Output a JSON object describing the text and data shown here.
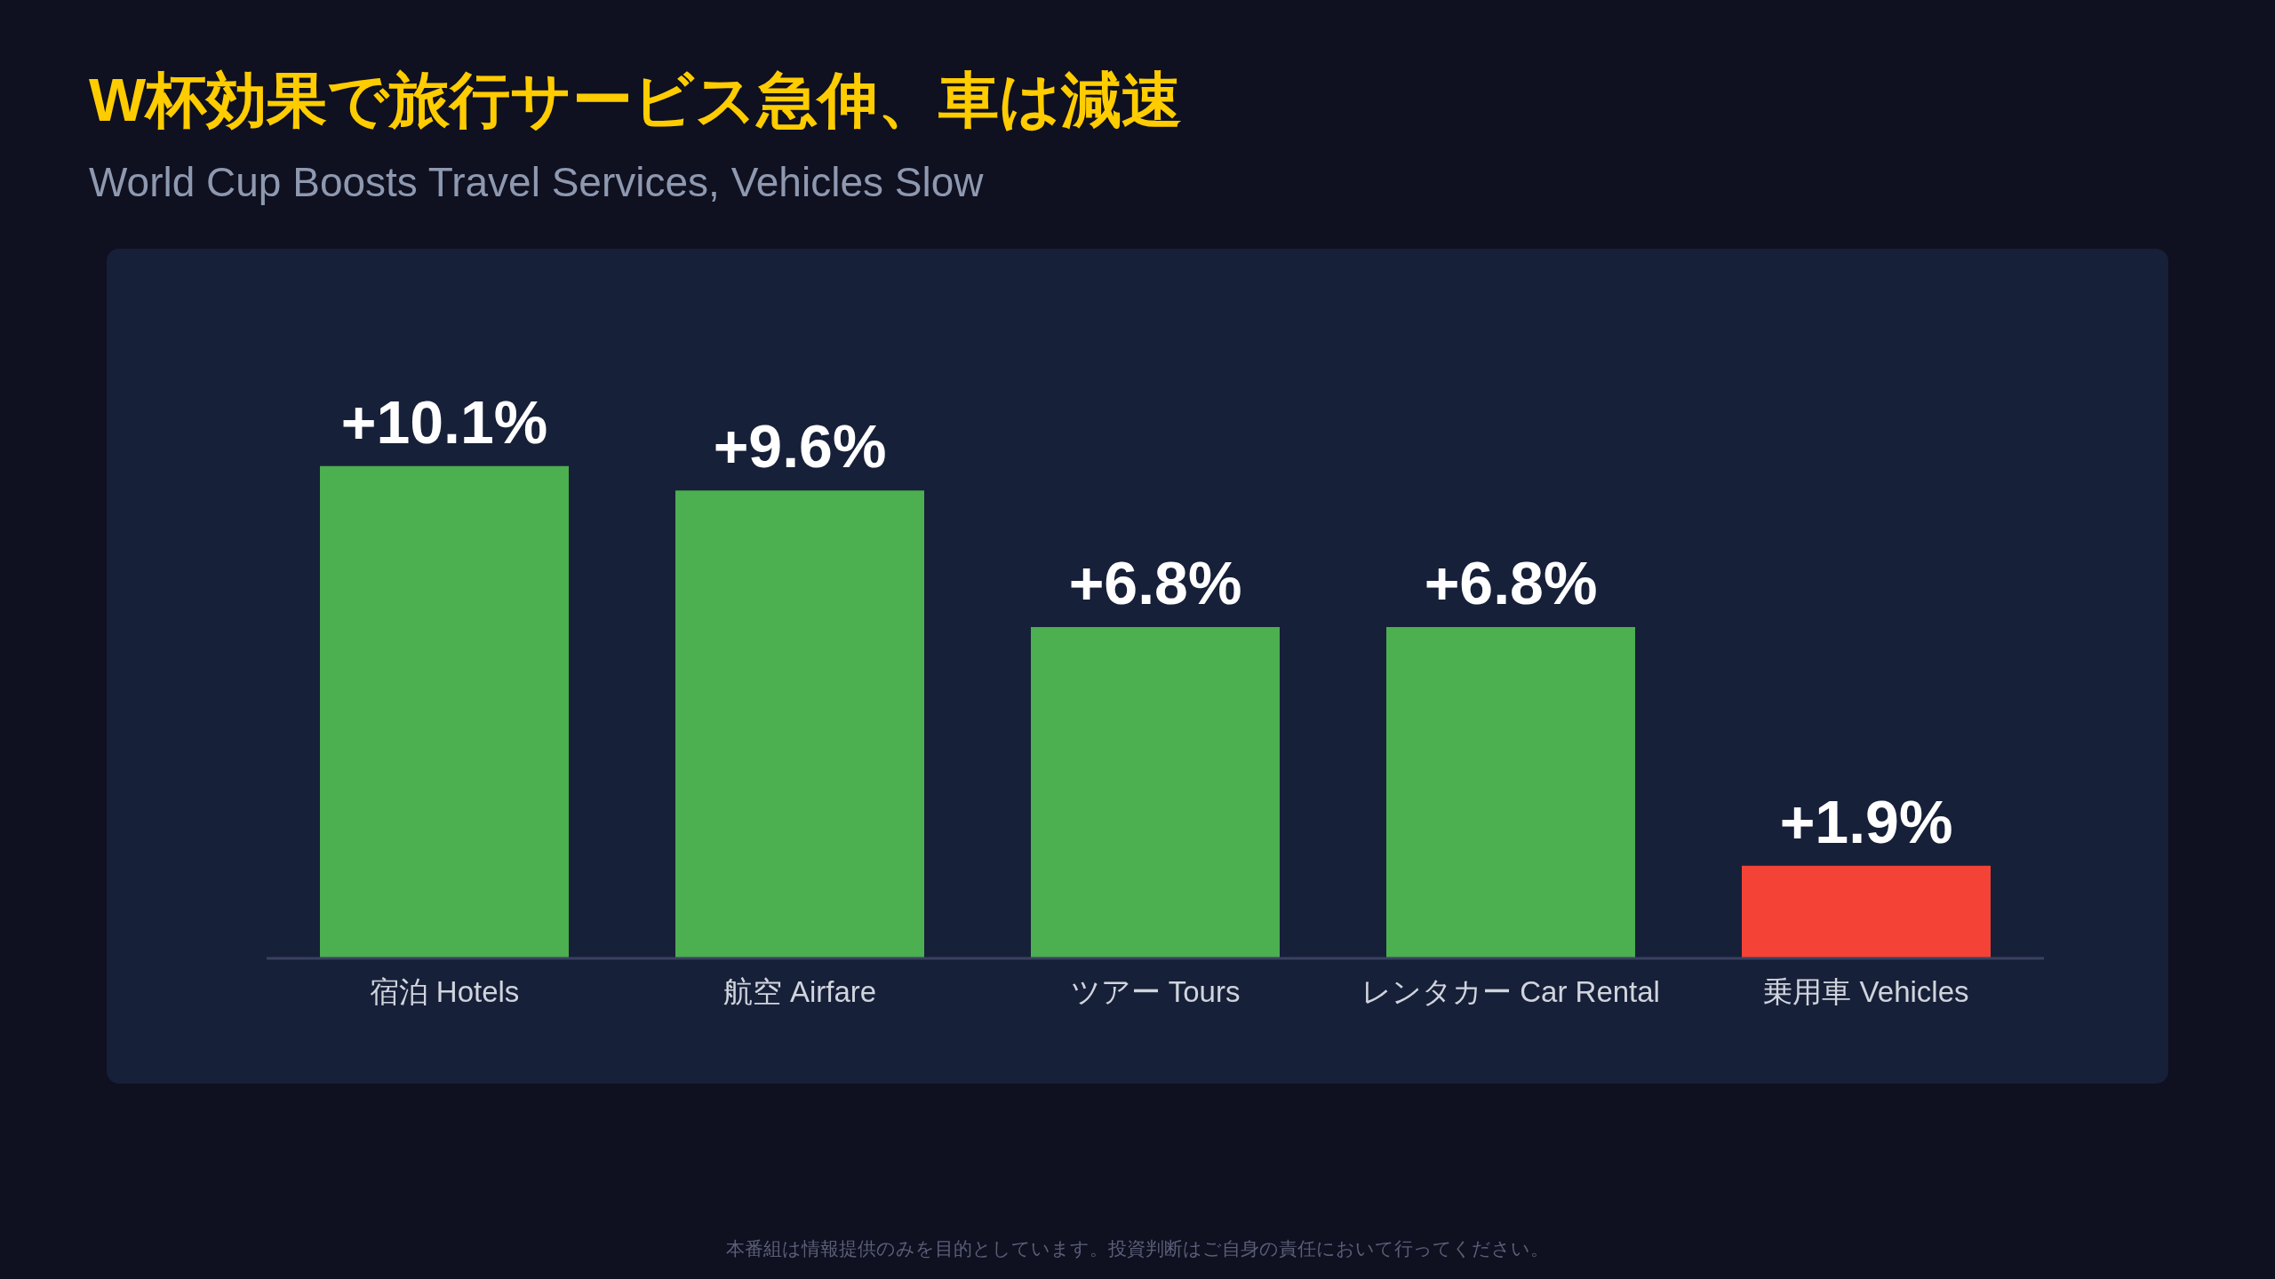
{
  "chart_data": {
    "type": "bar",
    "title": "W杯効果で旅行サービス急伸、車は減速",
    "subtitle": "World Cup Boosts Travel Services, Vehicles Slow",
    "categories": [
      "宿泊 Hotels",
      "航空 Airfare",
      "ツアー Tours",
      "レンタカー Car Rental",
      "乗用車 Vehicles"
    ],
    "values": [
      10.1,
      9.6,
      6.8,
      6.8,
      1.9
    ],
    "colors": [
      "#4caf50",
      "#4caf50",
      "#4caf50",
      "#4caf50",
      "#f44336"
    ],
    "value_labels": [
      "+10.1%",
      "+9.6%",
      "+6.8%",
      "+6.8%",
      "+1.9%"
    ],
    "annotations": [
      "本番組は情報提供のみを目的としています。投資判断はご自身の責任において行ってください。"
    ]
  }
}
